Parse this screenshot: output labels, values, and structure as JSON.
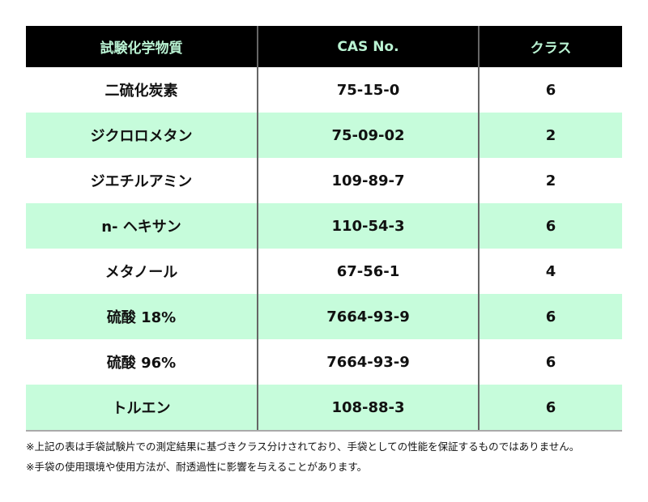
{
  "table": {
    "headers": [
      "試験化学物質",
      "CAS No.",
      "クラス"
    ],
    "rows": [
      [
        "二硫化炭素",
        "75-15-0",
        "6"
      ],
      [
        "ジクロロメタン",
        "75-09-02",
        "2"
      ],
      [
        "ジエチルアミン",
        "109-89-7",
        "2"
      ],
      [
        "n- ヘキサン",
        "110-54-3",
        "6"
      ],
      [
        "メタノール",
        "67-56-1",
        "4"
      ],
      [
        "硫酸 18%",
        "7664-93-9",
        "6"
      ],
      [
        "硫酸 96%",
        "7664-93-9",
        "6"
      ],
      [
        "トルエン",
        "108-88-3",
        "6"
      ]
    ]
  },
  "notes": [
    "※上記の表は手袋試験片での測定結果に基づきクラス分けされており、手袋としての性能を保証するものではありません。",
    "※手袋の使用環境や使用方法が、耐透過性に影響を与えることがあります。"
  ],
  "colors": {
    "header_bg": "#000000",
    "header_text": "#b9f2d2",
    "row_alt": "#c6fcdb"
  }
}
